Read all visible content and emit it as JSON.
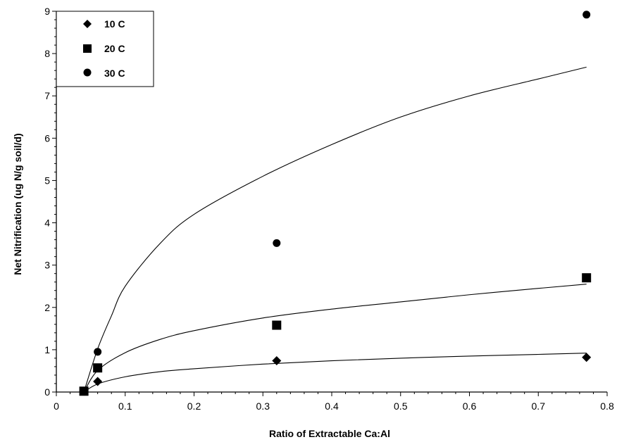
{
  "chart_data": {
    "type": "scatter",
    "title": "",
    "xlabel": "Ratio of Extractable Ca:Al",
    "ylabel": "Net Nitrification  (ug N/g soil/d)",
    "xlim": [
      0,
      0.8
    ],
    "ylim": [
      0,
      9
    ],
    "x_ticks": [
      "0",
      "0.1",
      "0.2",
      "0.3",
      "0.4",
      "0.5",
      "0.6",
      "0.7",
      "0.8"
    ],
    "y_ticks": [
      "0",
      "1",
      "2",
      "3",
      "4",
      "5",
      "6",
      "7",
      "8",
      "9"
    ],
    "grid": false,
    "legend_position": "top-left",
    "series": [
      {
        "name": "10 C",
        "marker": "diamond",
        "points": [
          [
            0.04,
            0.02
          ],
          [
            0.06,
            0.25
          ],
          [
            0.32,
            0.74
          ],
          [
            0.77,
            0.82
          ]
        ],
        "fit": [
          [
            0.04,
            0.0
          ],
          [
            0.06,
            0.19
          ],
          [
            0.1,
            0.36
          ],
          [
            0.15,
            0.48
          ],
          [
            0.2,
            0.55
          ],
          [
            0.3,
            0.66
          ],
          [
            0.4,
            0.74
          ],
          [
            0.5,
            0.8
          ],
          [
            0.6,
            0.85
          ],
          [
            0.7,
            0.89
          ],
          [
            0.77,
            0.92
          ]
        ]
      },
      {
        "name": "20 C",
        "marker": "square",
        "points": [
          [
            0.04,
            0.02
          ],
          [
            0.06,
            0.57
          ],
          [
            0.32,
            1.58
          ],
          [
            0.77,
            2.7
          ]
        ],
        "fit": [
          [
            0.04,
            0.0
          ],
          [
            0.06,
            0.51
          ],
          [
            0.1,
            0.93
          ],
          [
            0.15,
            1.24
          ],
          [
            0.2,
            1.45
          ],
          [
            0.3,
            1.75
          ],
          [
            0.4,
            1.96
          ],
          [
            0.5,
            2.13
          ],
          [
            0.6,
            2.3
          ],
          [
            0.7,
            2.45
          ],
          [
            0.77,
            2.55
          ]
        ]
      },
      {
        "name": "30 C",
        "marker": "circle",
        "points": [
          [
            0.04,
            0.02
          ],
          [
            0.06,
            0.95
          ],
          [
            0.32,
            3.52
          ],
          [
            0.77,
            8.92
          ]
        ],
        "fit": [
          [
            0.04,
            0.0
          ],
          [
            0.06,
            1.02
          ],
          [
            0.08,
            1.8
          ],
          [
            0.1,
            2.5
          ],
          [
            0.15,
            3.5
          ],
          [
            0.2,
            4.2
          ],
          [
            0.3,
            5.1
          ],
          [
            0.4,
            5.85
          ],
          [
            0.5,
            6.5
          ],
          [
            0.6,
            7.0
          ],
          [
            0.7,
            7.4
          ],
          [
            0.77,
            7.68
          ]
        ]
      }
    ]
  }
}
